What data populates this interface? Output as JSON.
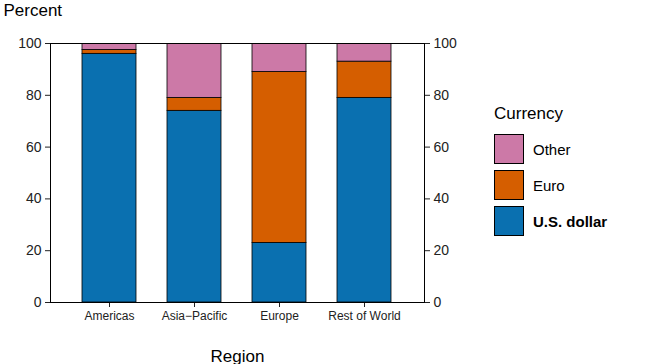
{
  "chart_data": {
    "type": "bar",
    "stacked": true,
    "x_label": "Region",
    "y_label": "Percent",
    "legend_title": "Currency",
    "legend": "right",
    "categories": [
      "Americas",
      "Asia−Pacific",
      "Europe",
      "Rest of World"
    ],
    "series": [
      {
        "name": "U.S. dollar",
        "color": "#0a70b0",
        "values": [
          96,
          74,
          23,
          79
        ]
      },
      {
        "name": "Euro",
        "color": "#d55e00",
        "values": [
          1.5,
          5,
          66,
          14
        ]
      },
      {
        "name": "Other",
        "color": "#cc79a7",
        "values": [
          2.5,
          21,
          11,
          7
        ]
      }
    ],
    "ylim": [
      0,
      100
    ],
    "yticks": [
      0,
      20,
      40,
      60,
      80,
      100
    ],
    "grid": false
  }
}
